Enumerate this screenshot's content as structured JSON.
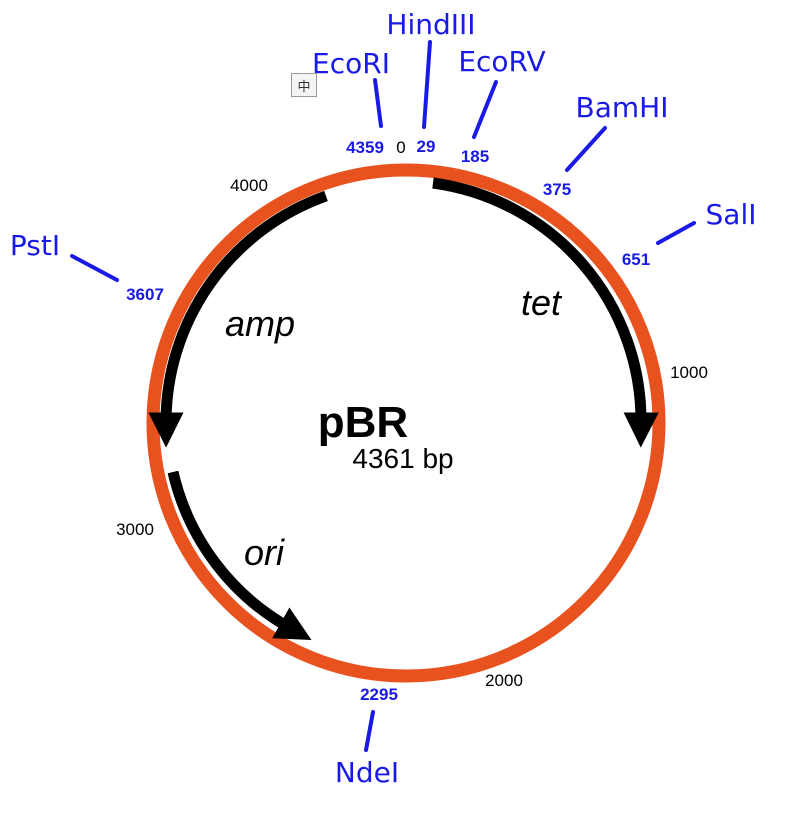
{
  "plasmid": {
    "name": "pBR",
    "size_label": "4361 bp"
  },
  "colors": {
    "backbone": "#e8521f",
    "enzyme_text": "#1a1ae6",
    "gene_arrow": "#000000"
  },
  "scale_ticks": [
    "0",
    "1000",
    "2000",
    "3000",
    "4000"
  ],
  "genes": [
    {
      "name": "tet"
    },
    {
      "name": "amp"
    },
    {
      "name": "ori"
    }
  ],
  "sites": [
    {
      "enzyme": "EcoRI",
      "position": "4359"
    },
    {
      "enzyme": "HindIII",
      "position": "29"
    },
    {
      "enzyme": "EcoRV",
      "position": "185"
    },
    {
      "enzyme": "BamHI",
      "position": "375"
    },
    {
      "enzyme": "SalI",
      "position": "651"
    },
    {
      "enzyme": "PstI",
      "position": "3607"
    },
    {
      "enzyme": "NdeI",
      "position": "2295"
    }
  ],
  "ime_badge": {
    "glyph": "中",
    "icon": "ime-chinese-icon"
  }
}
